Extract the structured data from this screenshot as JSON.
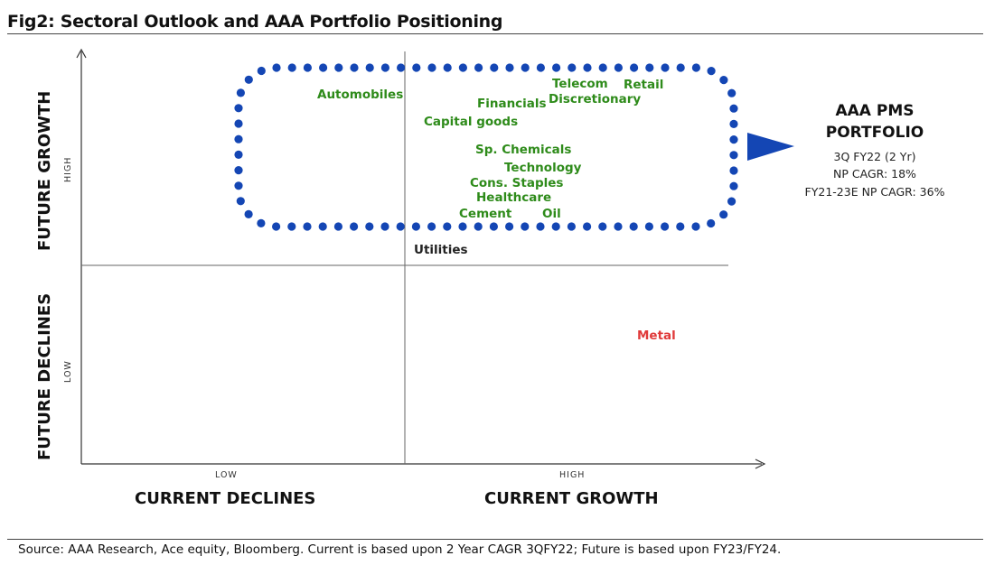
{
  "title": "Fig2: Sectoral Outlook and AAA Portfolio Positioning",
  "axes": {
    "y_labels": {
      "top": "FUTURE GROWTH",
      "bottom": "FUTURE DECLINES"
    },
    "y_levels": {
      "high": "HIGH",
      "low": "LOW"
    },
    "x_labels": {
      "left": "CURRENT DECLINES",
      "right": "CURRENT GROWTH"
    },
    "x_levels": {
      "low": "LOW",
      "high": "HIGH"
    }
  },
  "sectors": [
    {
      "key": "automobiles",
      "label": "Automobiles",
      "color": "#2e8b1a"
    },
    {
      "key": "financials",
      "label": "Financials",
      "color": "#2e8b1a"
    },
    {
      "key": "telecom",
      "label": "Telecom",
      "color": "#2e8b1a"
    },
    {
      "key": "retail",
      "label": "Retail",
      "color": "#2e8b1a"
    },
    {
      "key": "discretionary",
      "label": "Discretionary",
      "color": "#2e8b1a"
    },
    {
      "key": "capital-goods",
      "label": "Capital goods",
      "color": "#2e8b1a"
    },
    {
      "key": "sp-chemicals",
      "label": "Sp. Chemicals",
      "color": "#2e8b1a"
    },
    {
      "key": "technology",
      "label": "Technology",
      "color": "#2e8b1a"
    },
    {
      "key": "cons-staples",
      "label": "Cons. Staples",
      "color": "#2e8b1a"
    },
    {
      "key": "healthcare",
      "label": "Healthcare",
      "color": "#2e8b1a"
    },
    {
      "key": "cement",
      "label": "Cement",
      "color": "#2e8b1a"
    },
    {
      "key": "oil",
      "label": "Oil",
      "color": "#2e8b1a"
    },
    {
      "key": "utilities",
      "label": "Utilities",
      "color": "#222222"
    },
    {
      "key": "metal",
      "label": "Metal",
      "color": "#e03a3a"
    }
  ],
  "portfolio": {
    "title_line1": "AAA PMS",
    "title_line2": "PORTFOLIO",
    "line1": "3Q FY22 (2 Yr)",
    "line2": "NP CAGR: 18%",
    "line3": "FY21-23E NP CAGR: 36%",
    "marker_color": "#1446b4"
  },
  "source": "Source: AAA Research, Ace equity, Bloomberg. Current is based upon 2 Year CAGR 3QFY22; Future is based upon FY23/FY24."
}
